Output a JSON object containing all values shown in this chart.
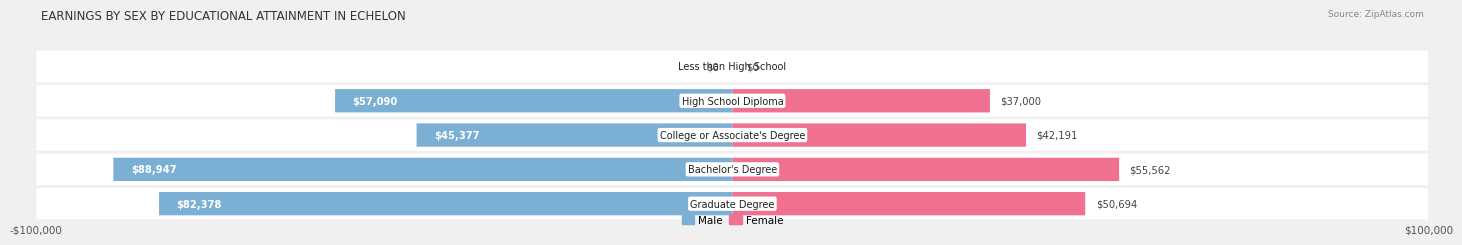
{
  "title": "EARNINGS BY SEX BY EDUCATIONAL ATTAINMENT IN ECHELON",
  "source": "Source: ZipAtlas.com",
  "categories": [
    "Less than High School",
    "High School Diploma",
    "College or Associate's Degree",
    "Bachelor's Degree",
    "Graduate Degree"
  ],
  "male_values": [
    0,
    57090,
    45377,
    88947,
    82378
  ],
  "female_values": [
    0,
    37000,
    42191,
    55562,
    50694
  ],
  "male_color": "#7bafd4",
  "female_color": "#f07090",
  "max_value": 100000,
  "x_tick_left": "$100,000",
  "x_tick_right": "$100,000",
  "legend_male": "Male",
  "legend_female": "Female",
  "title_fontsize": 8.5,
  "label_fontsize": 7.5,
  "axis_fontsize": 7.5,
  "row_bg_color": "#e8e8e8",
  "fig_bg_color": "#f0f0f0"
}
